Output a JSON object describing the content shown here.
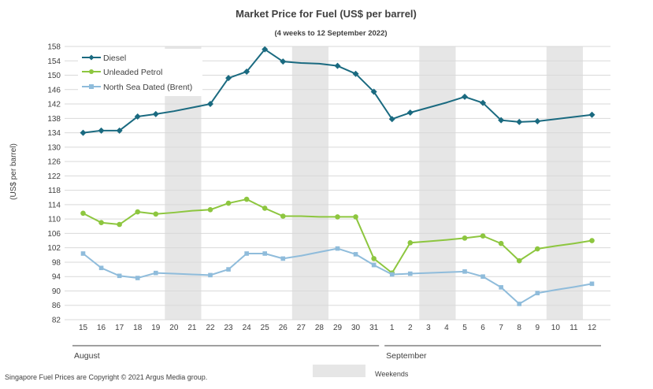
{
  "chart_data": {
    "type": "line",
    "title": "Market Price for Fuel (US$ per barrel)",
    "subtitle": "(4 weeks to 12 September 2022)",
    "ylabel": "(US$ per barrel)",
    "xlabel": "",
    "ylim": [
      82,
      158
    ],
    "ytick_step": 4,
    "categories": [
      "15",
      "16",
      "17",
      "18",
      "19",
      "20",
      "21",
      "22",
      "23",
      "24",
      "25",
      "26",
      "27",
      "28",
      "29",
      "30",
      "31",
      "1",
      "2",
      "3",
      "4",
      "5",
      "6",
      "7",
      "8",
      "9",
      "10",
      "11",
      "12"
    ],
    "month_labels": [
      {
        "label": "August",
        "start": 0,
        "end": 16
      },
      {
        "label": "September",
        "start": 17,
        "end": 28
      }
    ],
    "weekend_bands": [
      [
        5,
        6
      ],
      [
        12,
        13
      ],
      [
        19,
        20
      ],
      [
        26,
        27
      ]
    ],
    "weekend_label": "Weekends",
    "series": [
      {
        "name": "Diesel",
        "color": "#1a6a80",
        "marker": "diamond",
        "values": [
          134.0,
          134.6,
          134.6,
          138.5,
          139.2,
          140.0,
          141.0,
          142.0,
          149.2,
          151.0,
          157.2,
          153.8,
          153.4,
          153.2,
          152.6,
          150.4,
          145.4,
          137.8,
          139.6,
          141.0,
          142.4,
          144.0,
          142.3,
          137.5,
          137.0,
          137.2,
          137.8,
          138.4,
          139.0
        ],
        "marked": [
          true,
          true,
          true,
          true,
          true,
          false,
          false,
          true,
          true,
          true,
          true,
          true,
          false,
          false,
          true,
          true,
          true,
          true,
          true,
          false,
          false,
          true,
          true,
          true,
          true,
          true,
          false,
          false,
          true
        ]
      },
      {
        "name": "Unleaded Petrol",
        "color": "#8dc63f",
        "marker": "circle",
        "values": [
          111.6,
          109.0,
          108.5,
          112.0,
          111.4,
          111.8,
          112.3,
          112.6,
          114.4,
          115.5,
          113.0,
          110.8,
          110.8,
          110.6,
          110.6,
          110.6,
          99.0,
          95.0,
          103.4,
          103.8,
          104.2,
          104.7,
          105.3,
          103.2,
          98.4,
          101.7,
          102.5,
          103.2,
          104.0
        ],
        "marked": [
          true,
          true,
          true,
          true,
          true,
          false,
          false,
          true,
          true,
          true,
          true,
          true,
          false,
          false,
          true,
          true,
          true,
          true,
          true,
          false,
          false,
          true,
          true,
          true,
          true,
          true,
          false,
          false,
          true
        ]
      },
      {
        "name": "North Sea Dated (Brent)",
        "color": "#8fbcdb",
        "marker": "square",
        "values": [
          100.4,
          96.4,
          94.2,
          93.6,
          95.0,
          94.8,
          94.6,
          94.4,
          96.0,
          100.4,
          100.4,
          99.0,
          99.8,
          100.8,
          101.8,
          100.2,
          97.2,
          94.6,
          94.8,
          95.0,
          95.2,
          95.4,
          94.0,
          91.0,
          86.4,
          89.4,
          90.3,
          91.1,
          92.0
        ],
        "marked": [
          true,
          true,
          true,
          true,
          true,
          false,
          false,
          true,
          true,
          true,
          true,
          true,
          false,
          false,
          true,
          true,
          true,
          true,
          true,
          false,
          false,
          true,
          true,
          true,
          true,
          true,
          false,
          false,
          true
        ]
      }
    ],
    "legend_position": "top-left"
  },
  "footnote": "Singapore Fuel Prices are Copyright © 2021 Argus Media group.",
  "colors": {
    "weekend_band": "#e6e6e6",
    "grid": "#d9d9d9",
    "axis": "#404040"
  }
}
